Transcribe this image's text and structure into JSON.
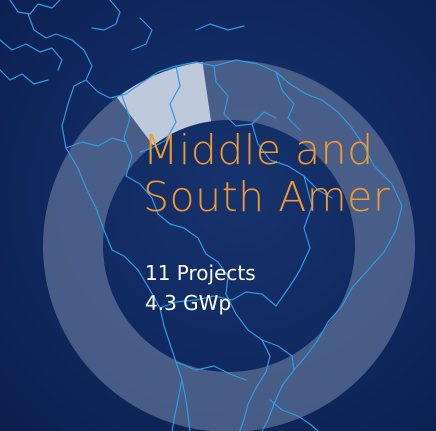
{
  "region": {
    "title_line1": "Middle and",
    "title_line2": "South Amer"
  },
  "stats": {
    "projects": "11 Projects",
    "capacity": "4.3 GWp"
  },
  "ring": {
    "highlight_fraction": 0.08
  },
  "colors": {
    "background": "#112a62",
    "accent": "#f39a2e",
    "ring": "#5b6f94",
    "ring_highlight": "#c9d2e3",
    "map_lines": "#2f9be6",
    "text": "#ffffff"
  }
}
